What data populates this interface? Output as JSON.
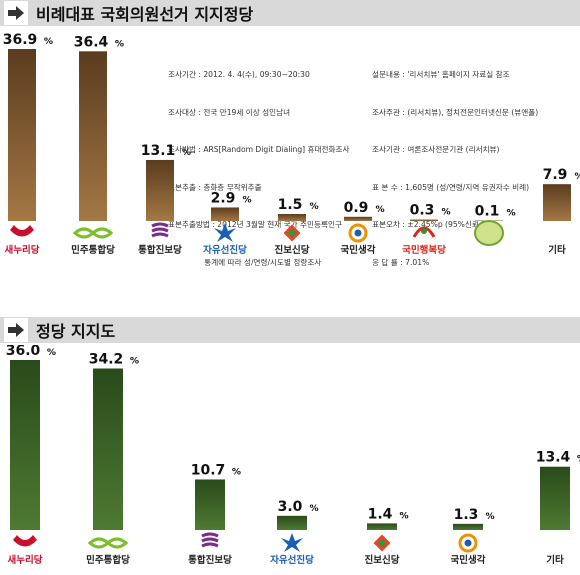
{
  "colors": {
    "header_bg": "#d9d9d9",
    "arrow": "#333333",
    "bar_top_section": "#8a6238",
    "bar_bottom_section": "#3f5e2a",
    "party_red": "#c8102e",
    "party_green": "#4a8a2a",
    "party_purple": "#7b2d8e",
    "party_blue": "#1a5fb4"
  },
  "sections": [
    {
      "title": "비례대표 국회의원선거 지지정당",
      "chart_data": {
        "type": "bar",
        "title": "비례대표 국회의원선거 지지정당",
        "categories": [
          "새누리당",
          "민주통합당",
          "통합진보당",
          "자유선진당",
          "진보신당",
          "국민생각",
          "국민행복당",
          "녹색당",
          "기타"
        ],
        "values": [
          36.9,
          36.4,
          13.1,
          2.9,
          1.5,
          0.9,
          0.3,
          0.1,
          7.9
        ],
        "value_labels": [
          "36.9",
          "36.4",
          "13.1",
          "2.9",
          "1.5",
          "0.9",
          "0.3",
          "0.1",
          "7.9"
        ],
        "unit": "%",
        "ylim": [
          0,
          40
        ],
        "grid": false,
        "legend": "none"
      },
      "party_labels": [
        "새누리당",
        "민주통합당",
        "통합진보당",
        "자유선진당",
        "진보신당",
        "국민생각",
        "국민행복당",
        "",
        "기타"
      ]
    },
    {
      "title": "정당 지지도",
      "chart_data": {
        "type": "bar",
        "title": "정당 지지도",
        "categories": [
          "새누리당",
          "민주통합당",
          "통합진보당",
          "자유선진당",
          "진보신당",
          "국민생각",
          "기타"
        ],
        "values": [
          36.0,
          34.2,
          10.7,
          3.0,
          1.4,
          1.3,
          13.4
        ],
        "value_labels": [
          "36.0",
          "34.2",
          "10.7",
          "3.0",
          "1.4",
          "1.3",
          "13.4"
        ],
        "unit": "%",
        "ylim": [
          0,
          40
        ],
        "grid": false,
        "legend": "none"
      },
      "party_labels": [
        "새누리당",
        "민주통합당",
        "통합진보당",
        "자유선진당",
        "진보신당",
        "국민생각",
        "기타"
      ]
    }
  ],
  "survey_info": {
    "left": [
      "조사기간 : 2012. 4. 4(수), 09:30~20:30",
      "조사대상 : 전국 만19세 이상 성인남녀",
      "조사방법 : ARS[Random Digit Dialing] 휴대전화조사",
      "표본추출 : 층화층 무작위추출",
      "표본추출방법 : 2012년 3월말 현재 국가 주민등록인구",
      "               통계에 따라 성/연령/시도별 정량조사"
    ],
    "right": [
      "설문내용 : '리서치뷰' 홈페이지 자료실 참조",
      "조사주관 : (리서치뷰), 정치전문인터넷신문 (뷰앤폴)",
      "조사기관 : 여론조사전문기관 (리서치뷰)",
      "표 본 수 : 1,605명 (성/연령/지역 유권자수 비례)",
      "표본오차 : ±2.45%p (95%신뢰수준)",
      "응 답 률 : 7.01%"
    ]
  }
}
